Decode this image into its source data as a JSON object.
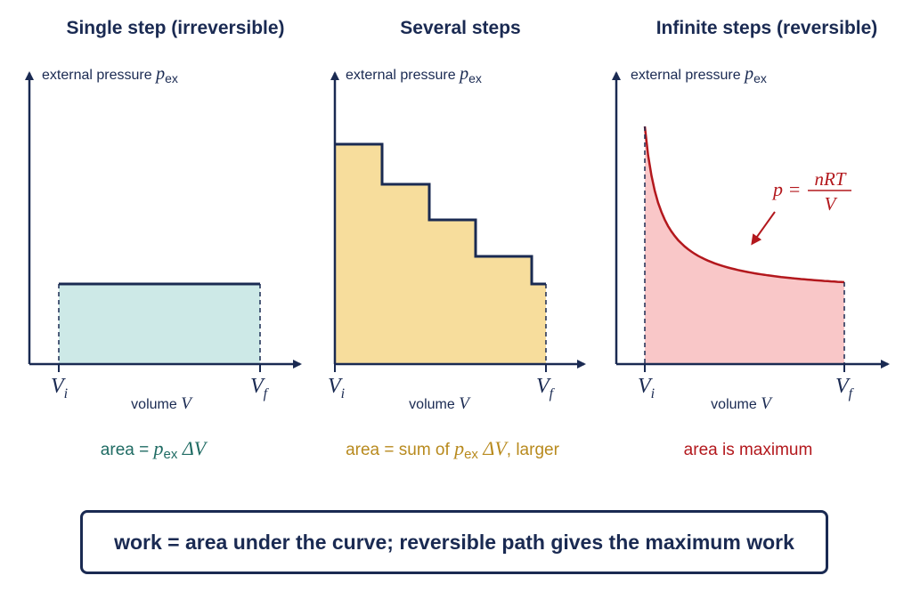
{
  "colors": {
    "ink": "#1a2a52",
    "teal_fill": "#cde9e7",
    "teal_text": "#1f6b63",
    "gold_fill": "#f7dd9c",
    "gold_text": "#b88a1e",
    "red_fill": "#f9c7c8",
    "red_curve": "#b3181d",
    "red_text": "#b3181d"
  },
  "panels": [
    {
      "title": "Single step (irreversible)",
      "ylabel": "external pressure",
      "ylabel_symbol": "p",
      "ylabel_sub": "ex",
      "xlabel": "volume",
      "xlabel_symbol": "V",
      "vi": "V",
      "vi_sub": "i",
      "vf": "V",
      "vf_sub": "f",
      "caption": {
        "prefix": "area = ",
        "p": "p",
        "p_sub": "ex",
        "suffix": " ΔV"
      }
    },
    {
      "title": "Several steps",
      "ylabel": "external pressure",
      "ylabel_symbol": "p",
      "ylabel_sub": "ex",
      "xlabel": "volume",
      "xlabel_symbol": "V",
      "vi": "V",
      "vi_sub": "i",
      "vf": "V",
      "vf_sub": "f",
      "caption": {
        "prefix": "area = sum of ",
        "p": "p",
        "p_sub": "ex",
        "dv": " ΔV",
        "suffix": ", larger"
      }
    },
    {
      "title": "Infinite steps (reversible)",
      "ylabel": "external pressure",
      "ylabel_symbol": "p",
      "ylabel_sub": "ex",
      "xlabel": "volume",
      "xlabel_symbol": "V",
      "vi": "V",
      "vi_sub": "i",
      "vf": "V",
      "vf_sub": "f",
      "equation": {
        "lhs": "p =",
        "numerator": "nRT",
        "denominator": "V"
      },
      "caption": {
        "text": "area is maximum"
      }
    }
  ],
  "summary": "work = area under the curve; reversible path gives the maximum work"
}
